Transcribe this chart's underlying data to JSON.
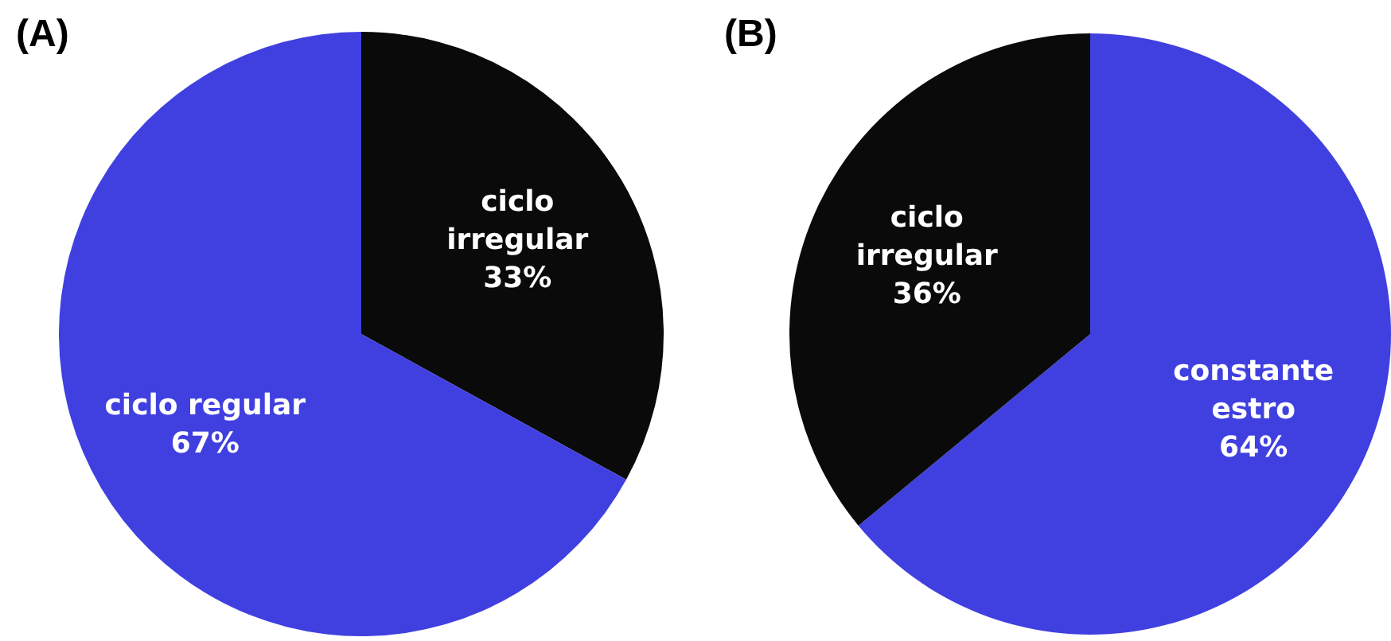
{
  "chart_data": [
    {
      "type": "pie",
      "title": "(A)",
      "categories": [
        "ciclo irregular",
        "ciclo regular"
      ],
      "values": [
        33,
        67
      ],
      "colors": [
        "#0a0a0a",
        "#4040e0"
      ],
      "value_labels": [
        "33%",
        "67%"
      ],
      "legend": false
    },
    {
      "type": "pie",
      "title": "(B)",
      "categories": [
        "constante estro",
        "ciclo irregular"
      ],
      "values": [
        64,
        36
      ],
      "colors": [
        "#4040e0",
        "#0a0a0a"
      ],
      "value_labels": [
        "64%",
        "36%"
      ],
      "legend": false
    }
  ]
}
